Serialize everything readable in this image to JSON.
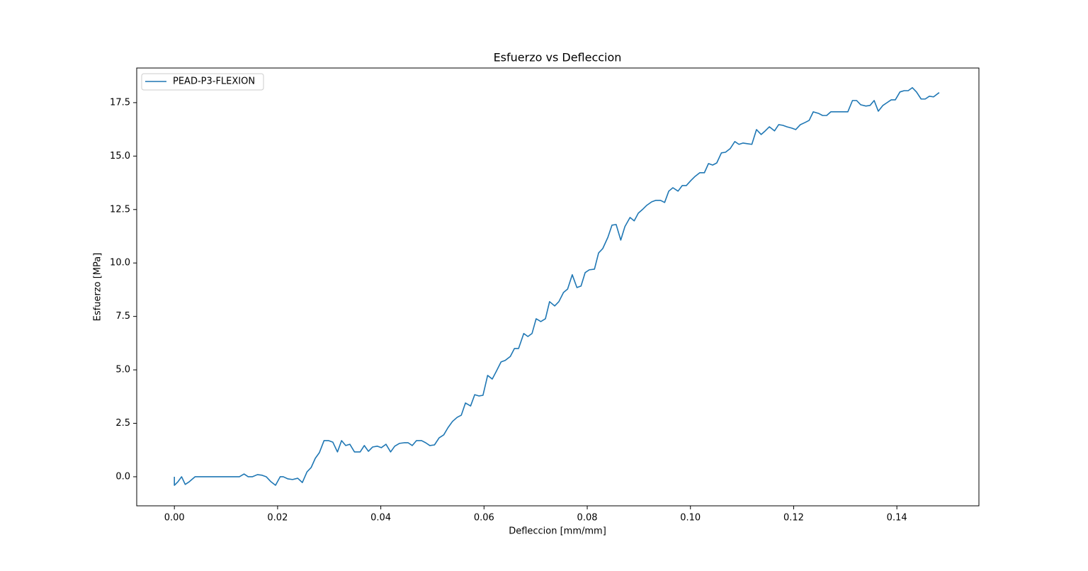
{
  "chart_data": {
    "type": "line",
    "title": "Esfuerzo vs Defleccion",
    "xlabel": "Defleccion [mm/mm]",
    "ylabel": "Esfuerzo [MPa]",
    "xlim": [
      -0.0073,
      0.1559
    ],
    "ylim": [
      -1.36,
      19.12
    ],
    "xticks": [
      {
        "value": 0,
        "label": "0.00"
      },
      0.02,
      0.04,
      0.06,
      0.08,
      {
        "value": 0.1,
        "label": "0.10"
      },
      0.12,
      0.14
    ],
    "yticks": [
      {
        "value": 0,
        "label": "0.0"
      },
      2.5,
      {
        "value": 5,
        "label": "5.0"
      },
      7.5,
      {
        "value": 10,
        "label": "10.0"
      },
      12.5,
      {
        "value": 15,
        "label": "15.0"
      },
      17.5
    ],
    "grid": false,
    "legend": "upper left",
    "x": [
      0,
      0,
      0.0007,
      0.0014,
      0.0021,
      0.0029,
      0.004,
      0.0126,
      0.0135,
      0.0143,
      0.0151,
      0.0161,
      0.017,
      0.0178,
      0.0187,
      0.0196,
      0.0205,
      0.0211,
      0.022,
      0.0229,
      0.0239,
      0.0248,
      0.0257,
      0.0265,
      0.0273,
      0.0281,
      0.029,
      0.0299,
      0.0307,
      0.0316,
      0.0324,
      0.0332,
      0.034,
      0.0349,
      0.036,
      0.0368,
      0.0376,
      0.0384,
      0.0393,
      0.0401,
      0.041,
      0.0419,
      0.0427,
      0.0436,
      0.0445,
      0.0453,
      0.0461,
      0.0469,
      0.0479,
      0.0487,
      0.0495,
      0.0504,
      0.0513,
      0.0522,
      0.053,
      0.0539,
      0.0548,
      0.0556,
      0.0564,
      0.0574,
      0.0582,
      0.059,
      0.0598,
      0.0607,
      0.0616,
      0.0624,
      0.0633,
      0.0641,
      0.0651,
      0.0659,
      0.0667,
      0.0677,
      0.0685,
      0.0693,
      0.0701,
      0.071,
      0.0719,
      0.0727,
      0.0737,
      0.0745,
      0.0754,
      0.0762,
      0.0771,
      0.078,
      0.0788,
      0.0796,
      0.0804,
      0.0814,
      0.0822,
      0.083,
      0.084,
      0.0848,
      0.0856,
      0.0865,
      0.0873,
      0.0883,
      0.0891,
      0.0899,
      0.0907,
      0.0915,
      0.0925,
      0.0933,
      0.0942,
      0.095,
      0.0958,
      0.0966,
      0.0976,
      0.0984,
      0.0992,
      0.1001,
      0.1009,
      0.1018,
      0.1027,
      0.1035,
      0.1043,
      0.1051,
      0.106,
      0.1068,
      0.1077,
      0.1086,
      0.1094,
      0.1102,
      0.111,
      0.1119,
      0.1128,
      0.1137,
      0.1145,
      0.1153,
      0.1163,
      0.1171,
      0.1179,
      0.1187,
      0.1196,
      0.1204,
      0.1213,
      0.1222,
      0.123,
      0.1238,
      0.1248,
      0.1256,
      0.1264,
      0.1272,
      0.1281,
      0.1289,
      0.1297,
      0.1305,
      0.1314,
      0.1322,
      0.133,
      0.134,
      0.1348,
      0.1356,
      0.1364,
      0.1373,
      0.1381,
      0.1389,
      0.1397,
      0.1406,
      0.1414,
      0.1422,
      0.143,
      0.1438,
      0.1447,
      0.1455,
      0.1463,
      0.1471,
      0.1482
    ],
    "series": [
      {
        "name": "PEAD-P3-FLEXION",
        "color": "#1f77b4",
        "values": [
          0,
          -0.4,
          -0.23,
          0,
          -0.36,
          -0.23,
          0,
          0,
          0.13,
          0,
          0,
          0.1,
          0.07,
          0,
          -0.23,
          -0.4,
          0,
          0,
          -0.1,
          -0.13,
          -0.07,
          -0.27,
          0.23,
          0.43,
          0.86,
          1.13,
          1.69,
          1.69,
          1.62,
          1.16,
          1.69,
          1.46,
          1.52,
          1.16,
          1.16,
          1.46,
          1.19,
          1.39,
          1.43,
          1.36,
          1.52,
          1.16,
          1.43,
          1.56,
          1.59,
          1.59,
          1.46,
          1.69,
          1.69,
          1.59,
          1.46,
          1.49,
          1.82,
          1.96,
          2.29,
          2.59,
          2.78,
          2.88,
          3.45,
          3.31,
          3.84,
          3.78,
          3.81,
          4.74,
          4.57,
          4.94,
          5.37,
          5.44,
          5.63,
          6.0,
          6.0,
          6.7,
          6.56,
          6.7,
          7.39,
          7.26,
          7.39,
          8.19,
          7.99,
          8.19,
          8.62,
          8.78,
          9.45,
          8.85,
          8.92,
          9.55,
          9.68,
          9.71,
          10.47,
          10.67,
          11.2,
          11.77,
          11.8,
          11.07,
          11.7,
          12.13,
          11.97,
          12.33,
          12.5,
          12.69,
          12.86,
          12.93,
          12.93,
          12.83,
          13.36,
          13.52,
          13.36,
          13.62,
          13.62,
          13.86,
          14.05,
          14.22,
          14.22,
          14.65,
          14.58,
          14.68,
          15.15,
          15.18,
          15.35,
          15.68,
          15.55,
          15.61,
          15.58,
          15.55,
          16.24,
          16.01,
          16.18,
          16.37,
          16.18,
          16.47,
          16.44,
          16.37,
          16.31,
          16.24,
          16.47,
          16.57,
          16.67,
          17.07,
          17.0,
          16.9,
          16.9,
          17.07,
          17.07,
          17.07,
          17.07,
          17.07,
          17.6,
          17.6,
          17.4,
          17.34,
          17.37,
          17.6,
          17.1,
          17.37,
          17.5,
          17.63,
          17.63,
          18.0,
          18.06,
          18.06,
          18.2,
          18.0,
          17.67,
          17.67,
          17.8,
          17.77,
          17.97
        ]
      }
    ]
  }
}
